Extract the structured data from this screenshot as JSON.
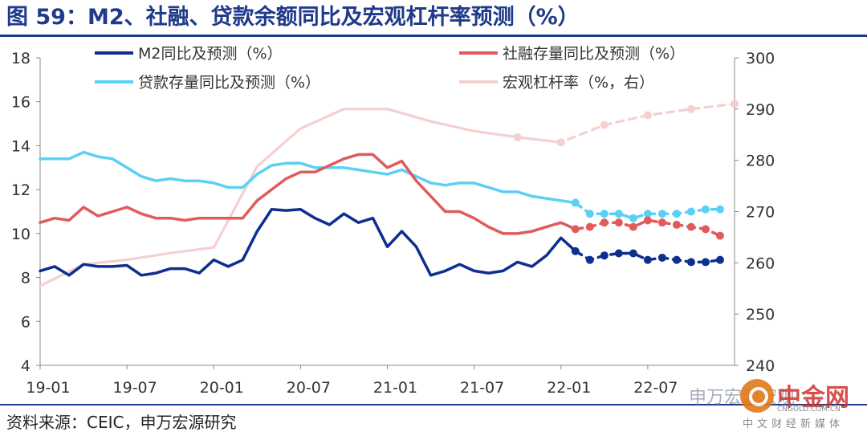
{
  "title": "图 59：M2、社融、贷款余额同比及宏观杠杆率预测（%）",
  "source": "资料来源：CEIC，申万宏源研究",
  "watermark": {
    "text1": "申万宏源宏观",
    "text2": "中金网",
    "text3": "CNGOLD.COM.CN",
    "text4": "中文财经新媒体"
  },
  "chart_data": {
    "type": "line",
    "x_tick_labels": [
      "19-01",
      "19-07",
      "20-01",
      "20-07",
      "21-01",
      "21-07",
      "22-01",
      "22-07"
    ],
    "x_tick_month_index": [
      0,
      6,
      12,
      18,
      24,
      30,
      36,
      42
    ],
    "left_axis": {
      "min": 4,
      "max": 18,
      "step": 2,
      "ticks": [
        4,
        6,
        8,
        10,
        12,
        14,
        16,
        18
      ]
    },
    "right_axis": {
      "min": 240,
      "max": 300,
      "step": 10,
      "ticks": [
        240,
        250,
        260,
        270,
        280,
        290,
        300
      ]
    },
    "legend_position": "top",
    "series": [
      {
        "name": "M2同比及预测（%）",
        "axis": "left",
        "color": "#0d2f8f",
        "actual": [
          [
            0,
            8.3
          ],
          [
            1,
            8.5
          ],
          [
            2,
            8.1
          ],
          [
            3,
            8.6
          ],
          [
            4,
            8.5
          ],
          [
            5,
            8.5
          ],
          [
            6,
            8.55
          ],
          [
            7,
            8.1
          ],
          [
            8,
            8.2
          ],
          [
            9,
            8.4
          ],
          [
            10,
            8.4
          ],
          [
            11,
            8.2
          ],
          [
            12,
            8.8
          ],
          [
            13,
            8.5
          ],
          [
            14,
            8.8
          ],
          [
            15,
            10.1
          ],
          [
            16,
            11.1
          ],
          [
            17,
            11.05
          ],
          [
            18,
            11.1
          ],
          [
            19,
            10.7
          ],
          [
            20,
            10.4
          ],
          [
            21,
            10.9
          ],
          [
            22,
            10.5
          ],
          [
            23,
            10.7
          ],
          [
            24,
            9.4
          ],
          [
            25,
            10.1
          ],
          [
            26,
            9.4
          ],
          [
            27,
            8.1
          ],
          [
            28,
            8.3
          ],
          [
            29,
            8.6
          ],
          [
            30,
            8.3
          ],
          [
            31,
            8.2
          ],
          [
            32,
            8.3
          ],
          [
            33,
            8.7
          ],
          [
            34,
            8.5
          ],
          [
            35,
            9.0
          ],
          [
            36,
            9.8
          ],
          [
            37,
            9.2
          ]
        ],
        "forecast": [
          [
            37,
            9.2
          ],
          [
            38,
            8.8
          ],
          [
            39,
            9.0
          ],
          [
            40,
            9.1
          ],
          [
            41,
            9.1
          ],
          [
            42,
            8.8
          ],
          [
            43,
            8.9
          ],
          [
            44,
            8.8
          ],
          [
            45,
            8.7
          ],
          [
            46,
            8.7
          ],
          [
            47,
            8.8
          ]
        ]
      },
      {
        "name": "社融存量同比及预测（%）",
        "axis": "left",
        "color": "#e05b5b",
        "actual": [
          [
            0,
            10.5
          ],
          [
            1,
            10.7
          ],
          [
            2,
            10.6
          ],
          [
            3,
            11.2
          ],
          [
            4,
            10.8
          ],
          [
            5,
            11.0
          ],
          [
            6,
            11.2
          ],
          [
            7,
            10.9
          ],
          [
            8,
            10.7
          ],
          [
            9,
            10.7
          ],
          [
            10,
            10.6
          ],
          [
            11,
            10.7
          ],
          [
            12,
            10.7
          ],
          [
            13,
            10.7
          ],
          [
            14,
            10.7
          ],
          [
            15,
            11.5
          ],
          [
            16,
            12.0
          ],
          [
            17,
            12.5
          ],
          [
            18,
            12.8
          ],
          [
            19,
            12.8
          ],
          [
            20,
            13.1
          ],
          [
            21,
            13.4
          ],
          [
            22,
            13.6
          ],
          [
            23,
            13.6
          ],
          [
            24,
            13.0
          ],
          [
            25,
            13.3
          ],
          [
            26,
            12.4
          ],
          [
            27,
            11.7
          ],
          [
            28,
            11.0
          ],
          [
            29,
            11.0
          ],
          [
            30,
            10.7
          ],
          [
            31,
            10.3
          ],
          [
            32,
            10.0
          ],
          [
            33,
            10.0
          ],
          [
            34,
            10.1
          ],
          [
            35,
            10.3
          ],
          [
            36,
            10.5
          ],
          [
            37,
            10.2
          ]
        ],
        "forecast": [
          [
            37,
            10.2
          ],
          [
            38,
            10.3
          ],
          [
            39,
            10.5
          ],
          [
            40,
            10.5
          ],
          [
            41,
            10.3
          ],
          [
            42,
            10.6
          ],
          [
            43,
            10.5
          ],
          [
            44,
            10.4
          ],
          [
            45,
            10.3
          ],
          [
            46,
            10.2
          ],
          [
            47,
            9.9
          ]
        ]
      },
      {
        "name": "贷款存量同比及预测（%）",
        "axis": "left",
        "color": "#5bd0f5",
        "actual": [
          [
            0,
            13.4
          ],
          [
            1,
            13.4
          ],
          [
            2,
            13.4
          ],
          [
            3,
            13.7
          ],
          [
            4,
            13.5
          ],
          [
            5,
            13.4
          ],
          [
            6,
            13.0
          ],
          [
            7,
            12.6
          ],
          [
            8,
            12.4
          ],
          [
            9,
            12.5
          ],
          [
            10,
            12.4
          ],
          [
            11,
            12.4
          ],
          [
            12,
            12.3
          ],
          [
            13,
            12.1
          ],
          [
            14,
            12.1
          ],
          [
            15,
            12.7
          ],
          [
            16,
            13.1
          ],
          [
            17,
            13.2
          ],
          [
            18,
            13.2
          ],
          [
            19,
            13.0
          ],
          [
            20,
            13.0
          ],
          [
            21,
            13.0
          ],
          [
            22,
            12.9
          ],
          [
            23,
            12.8
          ],
          [
            24,
            12.7
          ],
          [
            25,
            12.9
          ],
          [
            26,
            12.6
          ],
          [
            27,
            12.3
          ],
          [
            28,
            12.2
          ],
          [
            29,
            12.3
          ],
          [
            30,
            12.3
          ],
          [
            31,
            12.1
          ],
          [
            32,
            11.9
          ],
          [
            33,
            11.9
          ],
          [
            34,
            11.7
          ],
          [
            35,
            11.6
          ],
          [
            36,
            11.5
          ],
          [
            37,
            11.4
          ]
        ],
        "forecast": [
          [
            37,
            11.4
          ],
          [
            38,
            10.9
          ],
          [
            39,
            10.9
          ],
          [
            40,
            10.9
          ],
          [
            41,
            10.7
          ],
          [
            42,
            10.9
          ],
          [
            43,
            10.9
          ],
          [
            44,
            10.9
          ],
          [
            45,
            11.0
          ],
          [
            46,
            11.1
          ],
          [
            47,
            11.1
          ]
        ]
      },
      {
        "name": "宏观杠杆率（%，右）",
        "axis": "right",
        "color": "#f6cfd0",
        "actual": [
          [
            0,
            255.5
          ],
          [
            3,
            259.7
          ],
          [
            6,
            260.6
          ],
          [
            9,
            261.9
          ],
          [
            12,
            263.0
          ],
          [
            15,
            278.8
          ],
          [
            18,
            286.2
          ],
          [
            21,
            290.0
          ],
          [
            24,
            290.0
          ],
          [
            27,
            287.6
          ],
          [
            30,
            285.7
          ],
          [
            33,
            284.5
          ],
          [
            36,
            283.5
          ]
        ],
        "forecast": [
          [
            33,
            284.5
          ],
          [
            36,
            283.5
          ],
          [
            39,
            286.9
          ],
          [
            42,
            288.8
          ],
          [
            45,
            290.0
          ],
          [
            48,
            291.0
          ]
        ]
      }
    ]
  }
}
